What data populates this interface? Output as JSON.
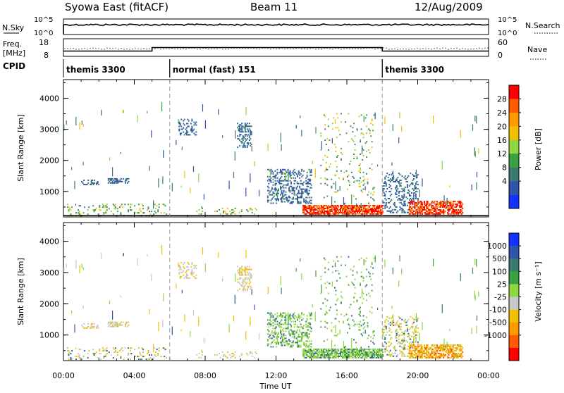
{
  "header": {
    "title": "Syowa East (fitACF)",
    "beam": "Beam 11",
    "date": "12/Aug/2009"
  },
  "panels": {
    "nsky_label": "N.Sky",
    "nsky_ticks": [
      "10^5",
      "10^0"
    ],
    "nsearch_label": "N.Search",
    "nsearch_ticks": [
      "10^5",
      "10^0"
    ],
    "freq_label": "Freq.",
    "freq_unit": "[MHz]",
    "freq_ticks": [
      "18",
      "8"
    ],
    "nave_label": "Nave",
    "nave_ticks": [
      "60",
      "0"
    ],
    "cpid_label": "CPID",
    "cpid_segments": [
      {
        "label": "themis 3300",
        "start": 0,
        "end": 6
      },
      {
        "label": "normal (fast) 151",
        "start": 6,
        "end": 18
      },
      {
        "label": "themis 3300",
        "start": 18,
        "end": 24
      }
    ]
  },
  "colorbars": {
    "power": {
      "title": "Power [dB]",
      "ticks": [
        "28",
        "24",
        "20",
        "16",
        "12",
        "8",
        "4"
      ],
      "colors": [
        "#ff0000",
        "#ff5a00",
        "#ff9a00",
        "#f0c000",
        "#8fd640",
        "#3aa040",
        "#3c7a70",
        "#2f55a8",
        "#1432ff"
      ]
    },
    "velocity": {
      "title": "Velocity [m s⁻¹]",
      "ticks": [
        "1000",
        "500",
        "100",
        "25",
        "-25",
        "-100",
        "-500",
        "-1000"
      ],
      "colors": [
        "#1432ff",
        "#2f55a8",
        "#3c7a70",
        "#3aa040",
        "#8fd640",
        "#c8c8c8",
        "#f0c000",
        "#ff9a00",
        "#ff5a00",
        "#ff0000"
      ]
    }
  },
  "chart_data": {
    "type": "heatmap",
    "xlabel": "Time UT",
    "ylabel": "Slant Range [km]",
    "x_ticks": [
      "00:00",
      "04:00",
      "08:00",
      "12:00",
      "16:00",
      "20:00",
      "00:00"
    ],
    "y_ticks": [
      "1000",
      "2000",
      "3000",
      "4000"
    ],
    "xlim": [
      0,
      24
    ],
    "ylim": [
      180,
      4600
    ],
    "frequency_mhz": [
      {
        "start": 0,
        "end": 5,
        "value": 11
      },
      {
        "start": 5,
        "end": 18,
        "value": 13
      },
      {
        "start": 18,
        "end": 24,
        "value": 11
      }
    ],
    "boundaries_hours": [
      6,
      18
    ],
    "echo_regions": [
      {
        "t0": 0.2,
        "t1": 6,
        "r0": 200,
        "r1": 600,
        "density": 0.12,
        "power": "mid",
        "vel": "mixed"
      },
      {
        "t0": 2.5,
        "t1": 3.7,
        "r0": 1250,
        "r1": 1400,
        "density": 0.55,
        "power": "low",
        "vel": "slow"
      },
      {
        "t0": 1.0,
        "t1": 2.0,
        "r0": 1200,
        "r1": 1350,
        "density": 0.3,
        "power": "low",
        "vel": "slow"
      },
      {
        "t0": 6.5,
        "t1": 7.5,
        "r0": 2800,
        "r1": 3300,
        "density": 0.3,
        "power": "low",
        "vel": "slow"
      },
      {
        "t0": 9.8,
        "t1": 10.6,
        "r0": 2400,
        "r1": 3200,
        "density": 0.4,
        "power": "low",
        "vel": "slow"
      },
      {
        "t0": 11.5,
        "t1": 14.0,
        "r0": 600,
        "r1": 1700,
        "density": 0.3,
        "power": "low",
        "vel": "pos"
      },
      {
        "t0": 13.5,
        "t1": 18.0,
        "r0": 250,
        "r1": 550,
        "density": 0.75,
        "power": "high",
        "vel": "pos"
      },
      {
        "t0": 14.5,
        "t1": 17.5,
        "r0": 600,
        "r1": 3500,
        "density": 0.05,
        "power": "mid",
        "vel": "pos"
      },
      {
        "t0": 18.0,
        "t1": 20.0,
        "r0": 300,
        "r1": 1600,
        "density": 0.25,
        "power": "low",
        "vel": "mixed"
      },
      {
        "t0": 19.5,
        "t1": 22.5,
        "r0": 250,
        "r1": 700,
        "density": 0.6,
        "power": "high",
        "vel": "neg"
      },
      {
        "t0": 7.5,
        "t1": 11.0,
        "r0": 250,
        "r1": 450,
        "density": 0.12,
        "power": "mid",
        "vel": "slow"
      }
    ]
  }
}
